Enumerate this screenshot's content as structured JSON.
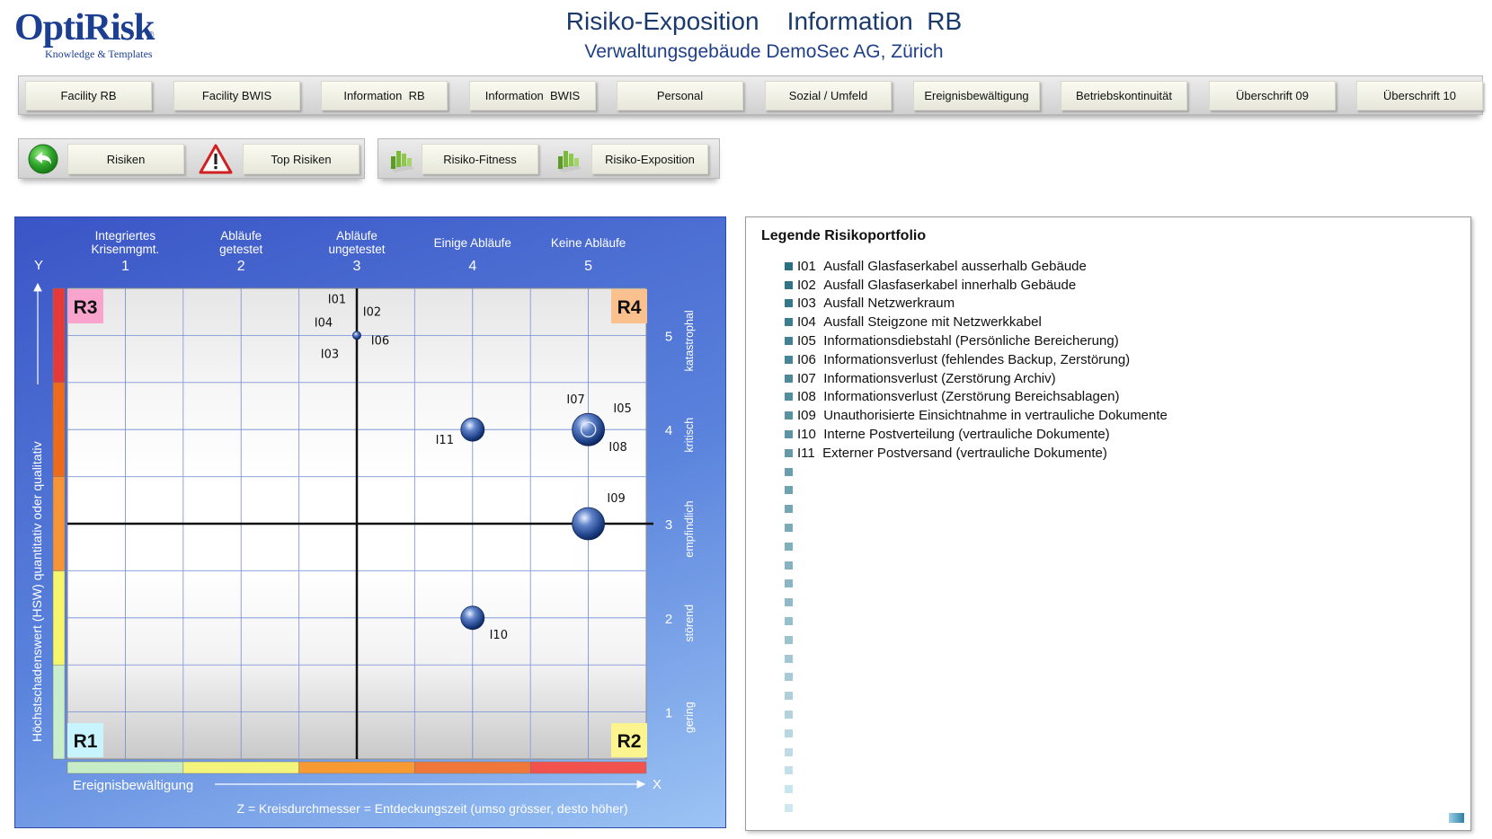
{
  "header": {
    "logo_text": "OptiRisk",
    "logo_registered": "®",
    "logo_tagline": "Knowledge & Templates",
    "title": "Risiko-Exposition    Information  RB",
    "subtitle": "Verwaltungsgebäude DemoSec AG, Zürich"
  },
  "nav": {
    "tabs": [
      {
        "label": "Facility RB"
      },
      {
        "label": "Facility BWIS"
      },
      {
        "label": "Information  RB"
      },
      {
        "label": "Information  BWIS"
      },
      {
        "label": "Personal"
      },
      {
        "label": "Sozial / Umfeld"
      },
      {
        "label": "Ereignisbewältigung"
      },
      {
        "label": "Betriebskontinuität"
      },
      {
        "label": "Überschrift 09"
      },
      {
        "label": "Überschrift 10"
      }
    ]
  },
  "actions": {
    "risiken_label": "Risiken",
    "top_risiken_label": "Top Risiken",
    "risiko_fitness_label": "Risiko-Fitness",
    "risiko_exposition_label": "Risiko-Exposition"
  },
  "chart_data": {
    "type": "scatter",
    "x_axis": {
      "label": "Ereignisbewältigung",
      "letter": "X",
      "range": [
        0.5,
        5.5
      ],
      "ticks": [
        1,
        2,
        3,
        4,
        5
      ],
      "tick_titles": [
        "Integriertes Krisenmgmt.",
        "Abläufe getestet",
        "Abläufe ungetestet",
        "Einige Abläufe",
        "Keine Abläufe"
      ],
      "color_bands": [
        "#c5ecc4",
        "#f3f47b",
        "#f79a34",
        "#f0773a",
        "#f2524e"
      ]
    },
    "y_axis": {
      "label": "Höchstschadenswert (HSW) quantitativ oder qualitativ",
      "letter": "Y",
      "range": [
        0.5,
        5.5
      ],
      "ticks": [
        1,
        2,
        3,
        4,
        5
      ],
      "tick_titles": [
        "gering",
        "störend",
        "empfindlich",
        "kritisch",
        "katastrophal"
      ],
      "color_bands": [
        "#c8eecc",
        "#f7f56a",
        "#f79536",
        "#ef6b1c",
        "#e63a3a"
      ]
    },
    "quadrants": [
      {
        "label": "R1",
        "position": "bottom-left",
        "color": "#c7f4ff"
      },
      {
        "label": "R2",
        "position": "bottom-right",
        "color": "#fbf48f"
      },
      {
        "label": "R3",
        "position": "top-left",
        "color": "#f8a4cd"
      },
      {
        "label": "R4",
        "position": "top-right",
        "color": "#fac08e"
      }
    ],
    "divider": {
      "x": 3,
      "y": 3
    },
    "z_note": "Z = Kreisdurchmesser = Entdeckungszeit (umso grösser, desto höher)",
    "bubbles": [
      {
        "x": 3,
        "y": 5,
        "size": "small",
        "labels": [
          "I01",
          "I02",
          "I03",
          "I04",
          "I06"
        ]
      },
      {
        "x": 4,
        "y": 4,
        "size": "medium",
        "labels": [
          "I11"
        ]
      },
      {
        "x": 5,
        "y": 4,
        "size": "large",
        "labels": [
          "I05",
          "I07",
          "I08"
        ]
      },
      {
        "x": 5,
        "y": 3,
        "size": "large",
        "labels": [
          "I09"
        ]
      },
      {
        "x": 4,
        "y": 2,
        "size": "medium",
        "labels": [
          "I10"
        ]
      }
    ]
  },
  "legend": {
    "title": "Legende Risikoportfolio",
    "items": [
      {
        "id": "I01",
        "text": "Ausfall Glasfaserkabel ausserhalb Gebäude"
      },
      {
        "id": "I02",
        "text": "Ausfall Glasfaserkabel innerhalb Gebäude"
      },
      {
        "id": "I03",
        "text": "Ausfall Netzwerkraum"
      },
      {
        "id": "I04",
        "text": "Ausfall Steigzone mit Netzwerkkabel"
      },
      {
        "id": "I05",
        "text": "Informationsdiebstahl (Persönliche Bereicherung)"
      },
      {
        "id": "I06",
        "text": "Informationsverlust (fehlendes Backup, Zerstörung)"
      },
      {
        "id": "I07",
        "text": "Informationsverlust (Zerstörung Archiv)"
      },
      {
        "id": "I08",
        "text": "Informationsverlust (Zerstörung Bereichsablagen)"
      },
      {
        "id": "I09",
        "text": "Unauthorisierte Einsichtnahme in vertrauliche Dokumente"
      },
      {
        "id": "I10",
        "text": "Interne Postverteilung (vertrauliche Dokumente)"
      },
      {
        "id": "I11",
        "text": "Externer Postversand (vertrauliche Dokumente)"
      }
    ],
    "empty_rows": 19
  }
}
